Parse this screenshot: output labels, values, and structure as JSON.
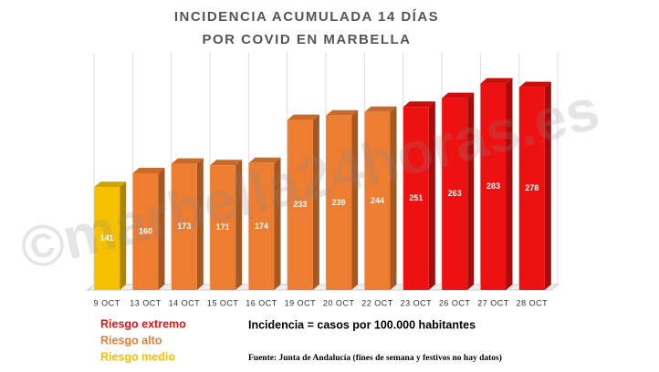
{
  "chart_data": {
    "type": "bar3d",
    "title": [
      "INCIDENCIA ACUMULADA 14 DÍAS",
      "POR COVID EN MARBELLA"
    ],
    "categories": [
      "9 OCT",
      "13 OCT",
      "14 OCT",
      "15 OCT",
      "16 OCT",
      "19 OCT",
      "20 OCT",
      "22 OCT",
      "23 OCT",
      "26 OCT",
      "27 OCT",
      "28 OCT"
    ],
    "values": [
      141,
      160,
      173,
      171,
      174,
      233,
      239,
      244,
      251,
      263,
      283,
      278
    ],
    "colors": [
      "#f5c000",
      "#ed7d31",
      "#ed7d31",
      "#ed7d31",
      "#ed7d31",
      "#ed7d31",
      "#ed7d31",
      "#ed7d31",
      "#ee1111",
      "#ee1111",
      "#ee1111",
      "#ee1111"
    ],
    "ylim": [
      0,
      300
    ],
    "legend": [
      {
        "name": "Riesgo extremo",
        "color": "#ee1111"
      },
      {
        "name": "Riesgo alto",
        "color": "#ed7d31"
      },
      {
        "name": "Riesgo medio",
        "color": "#f5c000"
      }
    ],
    "note": "Incidencia = casos por 100.000 habitantes",
    "source": "Fuente: Junta de Andalucía (fines de semana y festivos no hay datos)",
    "watermark": "©marbella24horas.es"
  }
}
